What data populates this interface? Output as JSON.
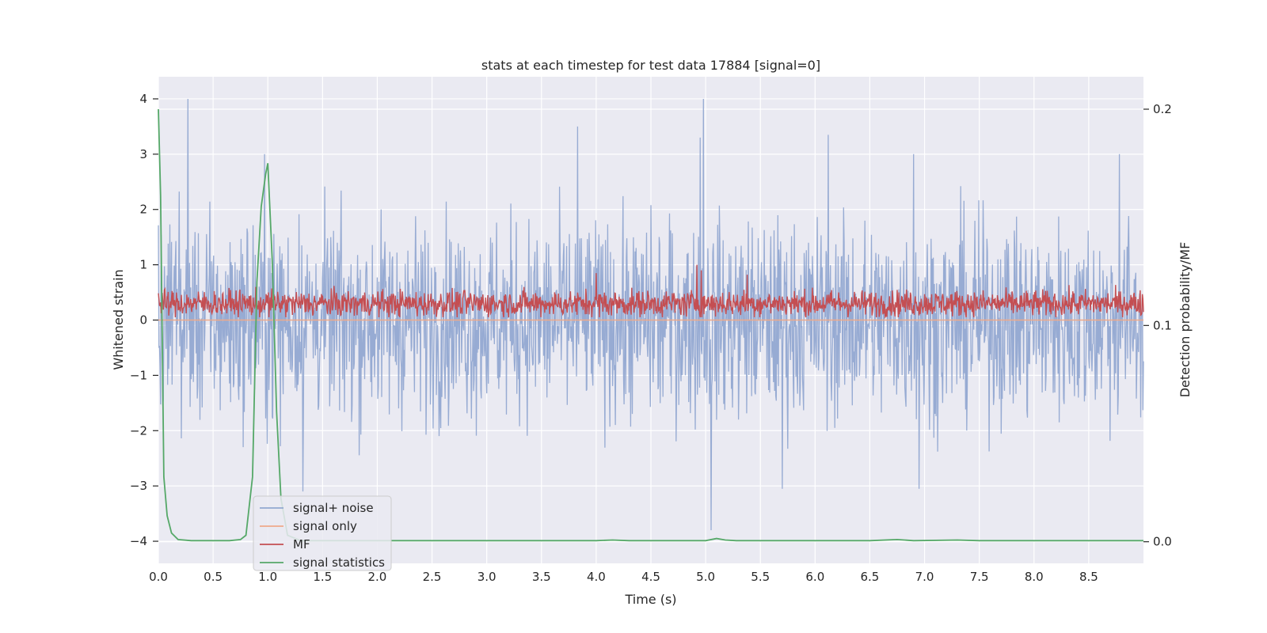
{
  "chart_data": {
    "type": "line",
    "title": "stats at each timestep for test data 17884 [signal=0]",
    "xlabel": "Time (s)",
    "ylabel": "Whitened strain",
    "y2label": "Detection probability/MF",
    "xlim": [
      0.0,
      9.0
    ],
    "ylim": [
      -4.4,
      4.4
    ],
    "y2lim": [
      -0.01,
      0.215
    ],
    "xticks": [
      0.0,
      0.5,
      1.0,
      1.5,
      2.0,
      2.5,
      3.0,
      3.5,
      4.0,
      4.5,
      5.0,
      5.5,
      6.0,
      6.5,
      7.0,
      7.5,
      8.0,
      8.5
    ],
    "xtick_labels": [
      "0.0",
      "0.5",
      "1.0",
      "1.5",
      "2.0",
      "2.5",
      "3.0",
      "3.5",
      "4.0",
      "4.5",
      "5.0",
      "5.5",
      "6.0",
      "6.5",
      "7.0",
      "7.5",
      "8.0",
      "8.5"
    ],
    "yticks": [
      -4,
      -3,
      -2,
      -1,
      0,
      1,
      2,
      3,
      4
    ],
    "ytick_labels": [
      "−4",
      "−3",
      "−2",
      "−1",
      "0",
      "1",
      "2",
      "3",
      "4"
    ],
    "y2ticks": [
      0.0,
      0.1,
      0.2
    ],
    "y2tick_labels": [
      "0.0",
      "0.1",
      "0.2"
    ],
    "grid": true,
    "legend_position": "lower-left",
    "series": [
      {
        "name": "signal+ noise",
        "axis": "left",
        "color": "#92a8d1",
        "description_values": "dense noise envelope",
        "envelope": {
          "typical_min": -1.9,
          "typical_max": 2.1,
          "peak_min": -3.8,
          "peak_max": 4.0
        },
        "peaks": [
          [
            0.27,
            4.0
          ],
          [
            0.97,
            3.0
          ],
          [
            3.83,
            3.5
          ],
          [
            4.95,
            3.3
          ],
          [
            4.98,
            4.0
          ],
          [
            6.12,
            3.35
          ],
          [
            6.9,
            3.0
          ],
          [
            8.78,
            3.0
          ],
          [
            5.05,
            -3.8
          ],
          [
            1.32,
            -3.1
          ],
          [
            5.7,
            -3.05
          ],
          [
            6.95,
            -3.05
          ]
        ]
      },
      {
        "name": "signal only",
        "axis": "left",
        "color": "#eea98a",
        "constant": 0.0
      },
      {
        "name": "MF",
        "axis": "left",
        "color": "#c44e52",
        "envelope": {
          "typical_min": 0.05,
          "typical_max": 0.6,
          "peak_max": 1.0
        },
        "peaks": [
          [
            4.92,
            1.0
          ],
          [
            4.96,
            0.9
          ],
          [
            5.38,
            0.82
          ],
          [
            4.0,
            0.85
          ]
        ]
      },
      {
        "name": "signal statistics",
        "axis": "right",
        "color": "#55a868",
        "x": [
          0.0,
          0.02,
          0.05,
          0.08,
          0.12,
          0.18,
          0.3,
          0.5,
          0.65,
          0.75,
          0.8,
          0.86,
          0.9,
          0.94,
          0.98,
          1.0,
          1.04,
          1.08,
          1.12,
          1.18,
          1.3,
          2.0,
          3.0,
          4.0,
          4.15,
          4.3,
          5.0,
          5.1,
          5.18,
          5.28,
          5.5,
          6.5,
          6.75,
          6.9,
          7.3,
          7.5,
          8.0,
          9.0
        ],
        "values": [
          0.2,
          0.16,
          0.03,
          0.012,
          0.004,
          0.001,
          0.0005,
          0.0005,
          0.0005,
          0.001,
          0.003,
          0.03,
          0.12,
          0.155,
          0.17,
          0.175,
          0.13,
          0.06,
          0.02,
          0.003,
          0.0005,
          0.0005,
          0.0005,
          0.0005,
          0.0008,
          0.0005,
          0.0005,
          0.0015,
          0.0008,
          0.0005,
          0.0005,
          0.0005,
          0.001,
          0.0005,
          0.0008,
          0.0005,
          0.0005,
          0.0005
        ]
      }
    ]
  }
}
